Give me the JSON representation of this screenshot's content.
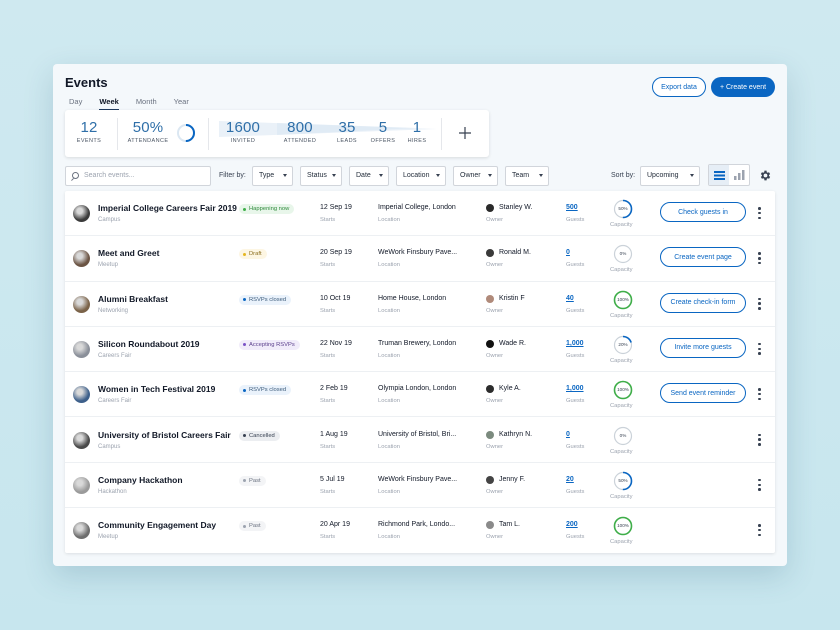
{
  "header": {
    "title": "Events",
    "periods": [
      "Day",
      "Week",
      "Month",
      "Year"
    ],
    "active_period": "Week",
    "export_label": "Export data",
    "create_label": "+ Create event"
  },
  "stats": {
    "events": {
      "value": "12",
      "label": "EVENTS"
    },
    "attendance": {
      "value": "50%",
      "label": "ATTENDANCE",
      "fraction": 0.5
    },
    "funnel": [
      {
        "value": "1600",
        "label": "INVITED"
      },
      {
        "value": "800",
        "label": "ATTENDED"
      },
      {
        "value": "35",
        "label": "LEADS"
      },
      {
        "value": "5",
        "label": "OFFERS"
      },
      {
        "value": "1",
        "label": "HIRES"
      }
    ],
    "add_icon": "plus-icon"
  },
  "filters": {
    "search_placeholder": "Search events...",
    "filter_label": "Filter by:",
    "dropdowns": [
      "Type",
      "Status",
      "Date",
      "Location",
      "Owner",
      "Team"
    ],
    "sort_label": "Sort by:",
    "sort_value": "Upcoming"
  },
  "colors": {
    "accent": "#0a66c2",
    "green": "#3fae49",
    "gray": "#cbd2d9"
  },
  "columns": {
    "date_sub": "Starts",
    "location_sub": "Location",
    "owner_sub": "Owner",
    "guests_sub": "Guests",
    "capacity_sub": "Capacity"
  },
  "events": [
    {
      "name": "Imperial College Careers Fair 2019",
      "type": "Campus",
      "status": "Happening now",
      "status_kind": "live",
      "date": "12 Sep 19",
      "location": "Imperial College, London",
      "owner": "Stanley W.",
      "guests": "500",
      "capacity": "50%",
      "capacity_fraction": 0.5,
      "action": "Check guests in",
      "avatar_color": "#3b3b3b",
      "owner_color": "#2a2a2a"
    },
    {
      "name": "Meet and Greet",
      "type": "Meetup",
      "status": "Draft",
      "status_kind": "draft",
      "date": "20 Sep 19",
      "location": "WeWork Finsbury Pave...",
      "owner": "Ronald M.",
      "guests": "0",
      "capacity": "0%",
      "capacity_fraction": 0,
      "action": "Create event page",
      "avatar_color": "#6b5444",
      "owner_color": "#3a3a3a"
    },
    {
      "name": "Alumni Breakfast",
      "type": "Networking",
      "status": "RSVPs closed",
      "status_kind": "closed",
      "date": "10 Oct 19",
      "location": "Home House, London",
      "owner": "Kristin F",
      "guests": "40",
      "capacity": "100%",
      "capacity_fraction": 1,
      "action": "Create check-in form",
      "avatar_color": "#7a6248",
      "owner_color": "#b08a7a"
    },
    {
      "name": "Silicon Roundabout 2019",
      "type": "Careers Fair",
      "status": "Accepting RSVPs",
      "status_kind": "accepting",
      "date": "22 Nov 19",
      "location": "Truman Brewery, London",
      "owner": "Wade R.",
      "guests": "1,000",
      "capacity": "20%",
      "capacity_fraction": 0.2,
      "action": "Invite more guests",
      "avatar_color": "#8a8f99",
      "owner_color": "#111111"
    },
    {
      "name": "Women in Tech Festival 2019",
      "type": "Careers Fair",
      "status": "RSVPs closed",
      "status_kind": "closed",
      "date": "2 Feb 19",
      "location": "Olympia London, London",
      "owner": "Kyle A.",
      "guests": "1,000",
      "capacity": "100%",
      "capacity_fraction": 1,
      "action": "Send event reminder",
      "avatar_color": "#3d5f8a",
      "owner_color": "#2c2c2c"
    },
    {
      "name": "University of Bristol Careers Fair",
      "type": "Campus",
      "status": "Cancelled",
      "status_kind": "cancelled",
      "date": "1 Aug 19",
      "location": "University of Bristol, Bri...",
      "owner": "Kathryn N.",
      "guests": "0",
      "capacity": "0%",
      "capacity_fraction": 0,
      "action": "",
      "avatar_color": "#4a4a4a",
      "owner_color": "#7b8a7e"
    },
    {
      "name": "Company Hackathon",
      "type": "Hackathon",
      "status": "Past",
      "status_kind": "past",
      "date": "5 Jul 19",
      "location": "WeWork Finsbury Pave...",
      "owner": "Jenny F.",
      "guests": "20",
      "capacity": "50%",
      "capacity_fraction": 0.5,
      "action": "",
      "avatar_color": "#9a9a9a",
      "owner_color": "#444444"
    },
    {
      "name": "Community Engagement Day",
      "type": "Meetup",
      "status": "Past",
      "status_kind": "past",
      "date": "20 Apr 19",
      "location": "Richmond Park, Londo...",
      "owner": "Tam L.",
      "guests": "200",
      "capacity": "100%",
      "capacity_fraction": 1,
      "action": "",
      "avatar_color": "#6e6e6e",
      "owner_color": "#8a8a8a"
    }
  ]
}
